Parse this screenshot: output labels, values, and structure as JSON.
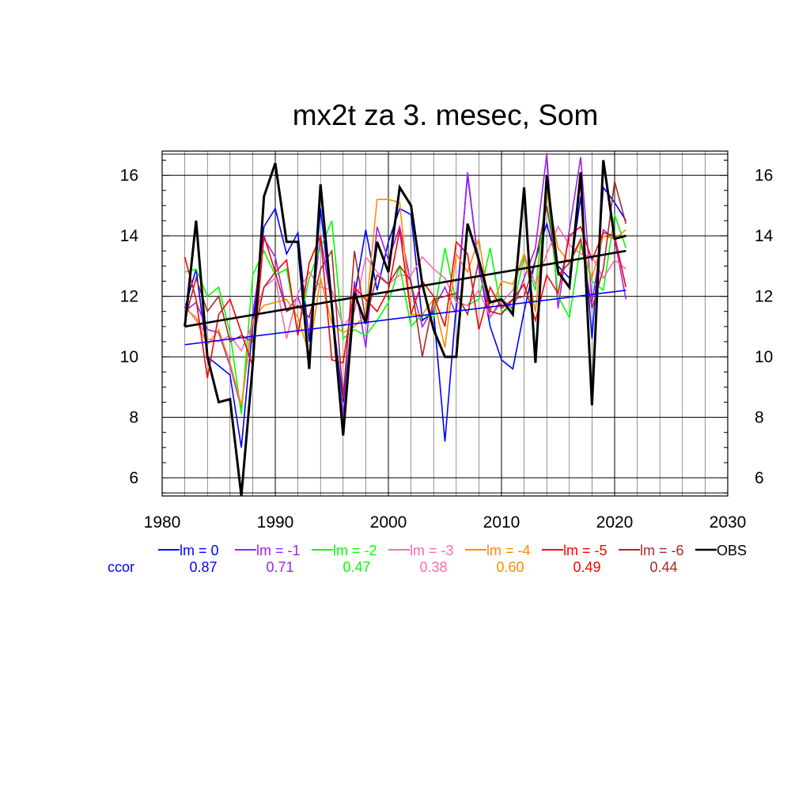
{
  "chart_data": {
    "type": "line",
    "title": "mx2t za 3. mesec, Som",
    "xlabel": "",
    "ylabel": "",
    "xlim": [
      1980,
      2030
    ],
    "ylim": [
      5.4,
      16.8
    ],
    "xticks": [
      1980,
      1990,
      2000,
      2010,
      2020,
      2030
    ],
    "yticks": [
      6,
      8,
      10,
      12,
      14,
      16
    ],
    "grid": true,
    "legend_position": "bottom",
    "ccor_label": "ccor",
    "x": [
      1982,
      1983,
      1984,
      1985,
      1986,
      1987,
      1988,
      1989,
      1990,
      1991,
      1992,
      1993,
      1994,
      1995,
      1996,
      1997,
      1998,
      1999,
      2000,
      2001,
      2002,
      2003,
      2004,
      2005,
      2006,
      2007,
      2008,
      2009,
      2010,
      2011,
      2012,
      2013,
      2014,
      2015,
      2016,
      2017,
      2018,
      2019,
      2020,
      2021
    ],
    "series": [
      {
        "name": "lm = 0",
        "ccor": "0.87",
        "color": "#0000ff",
        "width": 1.6,
        "values": [
          11.6,
          12.9,
          10.0,
          9.7,
          9.4,
          7.0,
          11.0,
          14.3,
          14.9,
          13.4,
          14.1,
          10.5,
          14.9,
          11.6,
          8.5,
          12.0,
          14.2,
          12.2,
          13.8,
          14.9,
          14.7,
          11.2,
          11.5,
          7.2,
          11.7,
          16.0,
          13.0,
          11.0,
          9.9,
          9.6,
          11.5,
          13.2,
          14.4,
          13.0,
          12.6,
          15.3,
          10.6,
          15.6,
          15.1,
          14.5
        ],
        "trend": [
          10.4,
          12.2
        ]
      },
      {
        "name": "lm = -1",
        "ccor": "0.71",
        "color": "#a020f0",
        "width": 1.6,
        "values": [
          11.5,
          11.8,
          10.9,
          10.8,
          9.7,
          8.3,
          11.4,
          13.9,
          13.3,
          11.5,
          12.0,
          10.8,
          14.0,
          11.7,
          8.0,
          12.5,
          10.3,
          14.3,
          13.2,
          14.3,
          12.4,
          11.0,
          11.6,
          12.3,
          11.4,
          16.1,
          12.9,
          11.3,
          11.9,
          11.6,
          12.6,
          13.6,
          16.7,
          11.6,
          14.2,
          16.6,
          11.8,
          14.2,
          13.9,
          11.9
        ]
      },
      {
        "name": "lm = -2",
        "ccor": "0.47",
        "color": "#00ff00",
        "width": 1.6,
        "values": [
          12.8,
          12.9,
          12.0,
          12.3,
          10.8,
          8.1,
          12.7,
          13.5,
          12.7,
          12.9,
          10.8,
          12.6,
          13.6,
          14.5,
          10.6,
          10.9,
          10.7,
          11.2,
          11.8,
          13.0,
          11.0,
          11.4,
          11.3,
          13.6,
          11.8,
          11.7,
          11.9,
          13.6,
          11.5,
          11.6,
          13.3,
          12.2,
          15.7,
          12.0,
          11.3,
          13.7,
          12.5,
          12.2,
          14.7,
          13.6
        ]
      },
      {
        "name": "lm = -3",
        "ccor": "0.38",
        "color": "#ff69b4",
        "width": 1.6,
        "values": [
          11.6,
          11.3,
          10.6,
          10.5,
          10.7,
          10.2,
          11.1,
          12.3,
          12.6,
          10.6,
          12.1,
          12.8,
          12.3,
          12.2,
          11.0,
          11.5,
          13.3,
          12.8,
          12.4,
          12.7,
          12.7,
          13.3,
          12.9,
          12.6,
          11.8,
          11.7,
          12.2,
          11.3,
          11.8,
          12.2,
          13.4,
          12.4,
          13.4,
          14.3,
          13.7,
          13.4,
          13.3,
          12.6,
          13.2,
          12.9
        ]
      },
      {
        "name": "lm = -4",
        "ccor": "0.60",
        "color": "#ff8c00",
        "width": 1.6,
        "values": [
          11.7,
          11.2,
          10.4,
          10.9,
          9.8,
          8.4,
          11.2,
          11.7,
          11.8,
          11.9,
          11.3,
          10.1,
          12.6,
          11.1,
          10.8,
          11.0,
          11.4,
          15.2,
          15.2,
          15.1,
          11.4,
          11.4,
          11.9,
          10.3,
          13.4,
          12.8,
          13.9,
          11.5,
          12.5,
          12.4,
          13.4,
          11.5,
          15.4,
          13.6,
          13.1,
          13.8,
          12.6,
          14.0,
          13.9,
          14.2
        ]
      },
      {
        "name": "lm = -5",
        "ccor": "0.49",
        "color": "#ff0000",
        "width": 1.6,
        "values": [
          13.3,
          11.9,
          9.3,
          11.4,
          11.9,
          10.8,
          9.7,
          14.0,
          12.8,
          13.2,
          10.7,
          13.1,
          14.0,
          9.9,
          9.8,
          12.3,
          11.9,
          11.5,
          12.2,
          14.2,
          11.4,
          12.5,
          12.0,
          11.0,
          13.8,
          13.4,
          10.9,
          12.3,
          11.6,
          11.9,
          12.4,
          11.2,
          12.7,
          12.1,
          14.0,
          14.3,
          13.2,
          14.1,
          14.0,
          12.3
        ]
      },
      {
        "name": "lm = -6",
        "ccor": "0.44",
        "color": "#a52a2a",
        "width": 1.6,
        "values": [
          11.2,
          12.6,
          11.5,
          12.0,
          10.5,
          10.7,
          10.5,
          12.3,
          12.8,
          11.5,
          11.7,
          11.3,
          12.9,
          13.5,
          8.6,
          13.5,
          11.2,
          12.7,
          12.4,
          13.0,
          12.5,
          10.0,
          11.9,
          12.0,
          12.1,
          11.4,
          13.2,
          11.5,
          11.4,
          11.9,
          12.0,
          13.2,
          15.0,
          12.7,
          13.1,
          13.9,
          11.6,
          12.9,
          15.8,
          14.4
        ]
      },
      {
        "name": "OBS",
        "ccor": "",
        "color": "#000000",
        "width": 3,
        "values": [
          11.0,
          14.5,
          10.0,
          8.5,
          8.6,
          5.4,
          9.7,
          15.3,
          16.4,
          13.8,
          13.8,
          9.6,
          15.7,
          11.7,
          7.4,
          12.1,
          11.1,
          13.8,
          12.8,
          15.6,
          15.0,
          12.4,
          10.9,
          10.0,
          10.0,
          14.4,
          13.2,
          11.8,
          11.9,
          11.4,
          15.6,
          9.8,
          16.0,
          12.8,
          12.3,
          16.1,
          8.4,
          16.5,
          13.9,
          14.0
        ],
        "trend": [
          11.0,
          13.5
        ]
      }
    ]
  }
}
